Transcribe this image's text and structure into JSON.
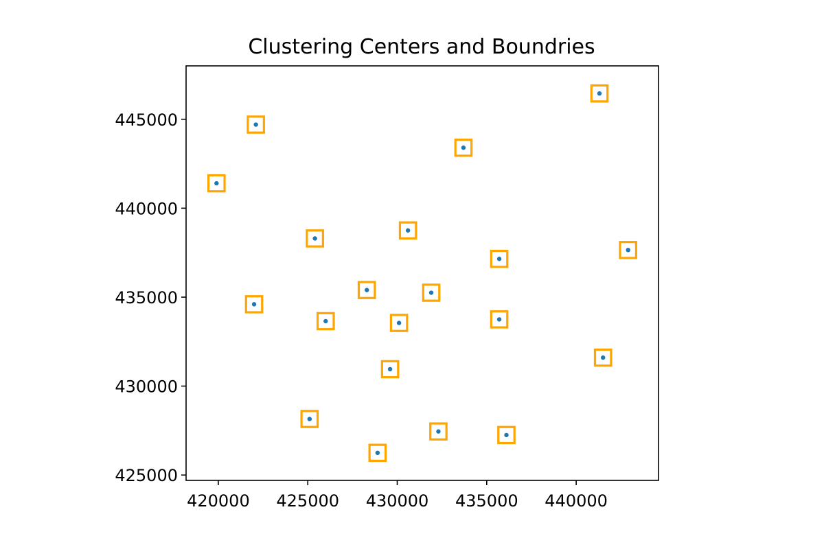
{
  "chart_data": {
    "type": "scatter",
    "title": "Clustering Centers and Boundries",
    "xlabel": "",
    "ylabel": "",
    "xlim": [
      418200,
      444600
    ],
    "ylim": [
      424700,
      448000
    ],
    "x_ticks": [
      420000,
      425000,
      430000,
      435000,
      440000
    ],
    "y_ticks": [
      425000,
      430000,
      435000,
      440000,
      445000
    ],
    "x_tick_labels": [
      "420000",
      "425000",
      "430000",
      "435000",
      "440000"
    ],
    "y_tick_labels": [
      "425000",
      "430000",
      "435000",
      "440000",
      "445000"
    ],
    "grid": false,
    "legend": "none",
    "point_color": "#1f77b4",
    "boundary_color": "#ffa500",
    "boundary_half_width": 450,
    "points": [
      {
        "x": 441300,
        "y": 446450
      },
      {
        "x": 422100,
        "y": 444700
      },
      {
        "x": 433700,
        "y": 443400
      },
      {
        "x": 419900,
        "y": 441400
      },
      {
        "x": 425400,
        "y": 438300
      },
      {
        "x": 430600,
        "y": 438750
      },
      {
        "x": 435700,
        "y": 437150
      },
      {
        "x": 442900,
        "y": 437650
      },
      {
        "x": 428300,
        "y": 435400
      },
      {
        "x": 431900,
        "y": 435250
      },
      {
        "x": 422000,
        "y": 434600
      },
      {
        "x": 426000,
        "y": 433650
      },
      {
        "x": 430100,
        "y": 433550
      },
      {
        "x": 435700,
        "y": 433750
      },
      {
        "x": 441500,
        "y": 431600
      },
      {
        "x": 429600,
        "y": 430950
      },
      {
        "x": 425100,
        "y": 428150
      },
      {
        "x": 432300,
        "y": 427450
      },
      {
        "x": 436100,
        "y": 427250
      },
      {
        "x": 428900,
        "y": 426250
      }
    ]
  }
}
